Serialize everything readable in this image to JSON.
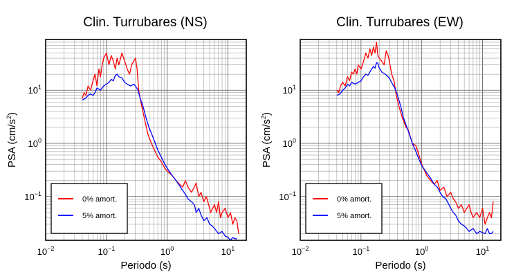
{
  "chart_data": [
    {
      "type": "line",
      "title": "Clin. Turrubares (NS)",
      "xlabel": "Periodo (s)",
      "ylabel": {
        "main": "PSA (cm/s",
        "sup": "2",
        "end": ")"
      },
      "xscale": "log",
      "yscale": "log",
      "xlim": [
        0.01,
        20
      ],
      "ylim": [
        0.015,
        90
      ],
      "grid": true,
      "legend_position": "bottom-left",
      "x_ticks": [
        {
          "value": 0.01,
          "base": "10",
          "exp": "−2"
        },
        {
          "value": 0.1,
          "base": "10",
          "exp": "−1"
        },
        {
          "value": 1,
          "base": "10",
          "exp": "0"
        },
        {
          "value": 10,
          "base": "10",
          "exp": "1"
        }
      ],
      "y_ticks": [
        {
          "value": 0.1,
          "base": "10",
          "exp": "−1"
        },
        {
          "value": 1,
          "base": "10",
          "exp": "0"
        },
        {
          "value": 10,
          "base": "10",
          "exp": "1"
        }
      ],
      "series": [
        {
          "name": "0% amort.",
          "color": "#ff0000",
          "x": [
            0.04,
            0.043,
            0.046,
            0.05,
            0.055,
            0.06,
            0.065,
            0.07,
            0.075,
            0.08,
            0.085,
            0.09,
            0.1,
            0.11,
            0.12,
            0.13,
            0.14,
            0.15,
            0.16,
            0.18,
            0.2,
            0.22,
            0.24,
            0.26,
            0.28,
            0.3,
            0.32,
            0.34,
            0.38,
            0.42,
            0.48,
            0.55,
            0.6,
            0.7,
            0.8,
            0.9,
            1.0,
            1.2,
            1.4,
            1.6,
            1.8,
            2.0,
            2.2,
            2.5,
            2.8,
            3.0,
            3.3,
            3.6,
            4.0,
            4.4,
            4.8,
            5.2,
            5.6,
            6.0,
            6.5,
            7.0,
            7.5,
            8.0,
            9.0,
            10.0,
            11.0,
            12.0,
            13.0,
            14.0,
            15.0
          ],
          "values": [
            7.0,
            9.0,
            8.0,
            12.0,
            10.0,
            15.0,
            20.0,
            12.0,
            25.0,
            18.0,
            30.0,
            40.0,
            50.0,
            30.0,
            45.0,
            35.0,
            25.0,
            40.0,
            30.0,
            50.0,
            35.0,
            25.0,
            20.0,
            30.0,
            35.0,
            40.0,
            25.0,
            10.0,
            5.0,
            3.0,
            1.5,
            1.0,
            0.8,
            0.55,
            0.45,
            0.35,
            0.3,
            0.25,
            0.2,
            0.17,
            0.15,
            0.2,
            0.15,
            0.12,
            0.15,
            0.18,
            0.1,
            0.12,
            0.08,
            0.1,
            0.07,
            0.05,
            0.06,
            0.07,
            0.05,
            0.08,
            0.04,
            0.05,
            0.06,
            0.04,
            0.05,
            0.03,
            0.04,
            0.035,
            0.02
          ]
        },
        {
          "name": "5% amort.",
          "color": "#0000ff",
          "x": [
            0.04,
            0.045,
            0.05,
            0.055,
            0.06,
            0.065,
            0.07,
            0.08,
            0.09,
            0.1,
            0.11,
            0.12,
            0.13,
            0.14,
            0.15,
            0.16,
            0.18,
            0.2,
            0.22,
            0.25,
            0.28,
            0.3,
            0.33,
            0.36,
            0.4,
            0.45,
            0.5,
            0.6,
            0.7,
            0.8,
            0.9,
            1.0,
            1.2,
            1.4,
            1.6,
            1.8,
            2.0,
            2.2,
            2.5,
            2.8,
            3.0,
            3.3,
            3.6,
            4.0,
            4.5,
            5.0,
            5.5,
            6.0,
            7.0,
            8.0,
            9.0,
            10.0,
            11.0,
            12.0,
            13.0,
            14.0
          ],
          "values": [
            6.5,
            7.0,
            8.0,
            8.5,
            8.0,
            9.0,
            11.0,
            10.0,
            12.0,
            13.0,
            14.0,
            16.0,
            15.0,
            19.0,
            20.0,
            18.0,
            17.0,
            14.0,
            13.0,
            12.0,
            13.0,
            12.0,
            10.0,
            7.0,
            5.0,
            3.0,
            2.0,
            1.2,
            0.75,
            0.55,
            0.42,
            0.34,
            0.25,
            0.2,
            0.16,
            0.13,
            0.11,
            0.09,
            0.08,
            0.07,
            0.05,
            0.06,
            0.045,
            0.035,
            0.04,
            0.03,
            0.028,
            0.025,
            0.02,
            0.022,
            0.018,
            0.017,
            0.015,
            0.017,
            0.016,
            0.016
          ]
        }
      ]
    },
    {
      "type": "line",
      "title": "Clin. Turrubares (EW)",
      "xlabel": "Periodo (s)",
      "ylabel": {
        "main": "PSA (cm/s",
        "sup": "2",
        "end": ")"
      },
      "xscale": "log",
      "yscale": "log",
      "xlim": [
        0.01,
        20
      ],
      "ylim": [
        0.015,
        90
      ],
      "grid": true,
      "legend_position": "bottom-left",
      "x_ticks": [
        {
          "value": 0.01,
          "base": "10",
          "exp": "−2"
        },
        {
          "value": 0.1,
          "base": "10",
          "exp": "−1"
        },
        {
          "value": 1,
          "base": "10",
          "exp": "0"
        },
        {
          "value": 10,
          "base": "10",
          "exp": "1"
        }
      ],
      "y_ticks": [
        {
          "value": 0.1,
          "base": "10",
          "exp": "−1"
        },
        {
          "value": 1,
          "base": "10",
          "exp": "0"
        },
        {
          "value": 10,
          "base": "10",
          "exp": "1"
        }
      ],
      "series": [
        {
          "name": "0% amort.",
          "color": "#ff0000",
          "x": [
            0.04,
            0.043,
            0.046,
            0.05,
            0.055,
            0.06,
            0.065,
            0.07,
            0.075,
            0.08,
            0.085,
            0.09,
            0.1,
            0.11,
            0.12,
            0.13,
            0.14,
            0.15,
            0.16,
            0.17,
            0.18,
            0.19,
            0.2,
            0.22,
            0.24,
            0.26,
            0.28,
            0.3,
            0.32,
            0.35,
            0.38,
            0.42,
            0.48,
            0.55,
            0.6,
            0.7,
            0.8,
            0.9,
            1.0,
            1.2,
            1.4,
            1.6,
            1.8,
            2.0,
            2.3,
            2.6,
            3.0,
            3.3,
            3.6,
            4.0,
            4.5,
            5.0,
            5.5,
            6.0,
            6.5,
            7.0,
            8.0,
            9.0,
            10.0,
            11.0,
            12.0,
            13.0,
            14.0,
            15.0
          ],
          "values": [
            10.0,
            9.0,
            12.0,
            14.0,
            12.0,
            18.0,
            15.0,
            22.0,
            20.0,
            25.0,
            20.0,
            30.0,
            25.0,
            35.0,
            50.0,
            40.0,
            60.0,
            45.0,
            65.0,
            50.0,
            80.0,
            45.0,
            40.0,
            35.0,
            30.0,
            55.0,
            45.0,
            30.0,
            20.0,
            15.0,
            8.0,
            5.0,
            3.0,
            2.0,
            1.8,
            1.0,
            0.9,
            0.6,
            0.4,
            0.25,
            0.2,
            0.17,
            0.2,
            0.13,
            0.15,
            0.1,
            0.12,
            0.09,
            0.08,
            0.06,
            0.07,
            0.05,
            0.06,
            0.07,
            0.05,
            0.04,
            0.05,
            0.04,
            0.06,
            0.03,
            0.04,
            0.05,
            0.04,
            0.08
          ]
        },
        {
          "name": "5% amort.",
          "color": "#0000ff",
          "x": [
            0.04,
            0.045,
            0.05,
            0.055,
            0.06,
            0.065,
            0.07,
            0.08,
            0.09,
            0.1,
            0.11,
            0.12,
            0.13,
            0.14,
            0.15,
            0.16,
            0.17,
            0.18,
            0.19,
            0.2,
            0.22,
            0.25,
            0.28,
            0.3,
            0.33,
            0.36,
            0.4,
            0.45,
            0.5,
            0.6,
            0.7,
            0.8,
            0.9,
            1.0,
            1.2,
            1.4,
            1.6,
            1.8,
            2.0,
            2.2,
            2.5,
            2.8,
            3.0,
            3.3,
            3.6,
            4.0,
            4.5,
            5.0,
            5.5,
            6.0,
            7.0,
            8.0,
            9.0,
            10.0,
            11.0,
            12.0,
            13.0,
            14.0,
            15.0
          ],
          "values": [
            8.0,
            8.5,
            10.0,
            11.0,
            13.0,
            12.0,
            14.0,
            13.0,
            14.0,
            15.0,
            18.0,
            20.0,
            19.0,
            22.0,
            25.0,
            28.0,
            26.0,
            33.0,
            32.0,
            26.0,
            22.0,
            20.0,
            18.0,
            16.0,
            13.0,
            11.0,
            8.0,
            5.0,
            3.0,
            1.7,
            1.0,
            0.7,
            0.5,
            0.38,
            0.28,
            0.22,
            0.17,
            0.15,
            0.12,
            0.1,
            0.09,
            0.07,
            0.06,
            0.05,
            0.045,
            0.035,
            0.03,
            0.028,
            0.025,
            0.022,
            0.025,
            0.02,
            0.022,
            0.021,
            0.02,
            0.025,
            0.02,
            0.02,
            0.022
          ]
        }
      ]
    }
  ]
}
